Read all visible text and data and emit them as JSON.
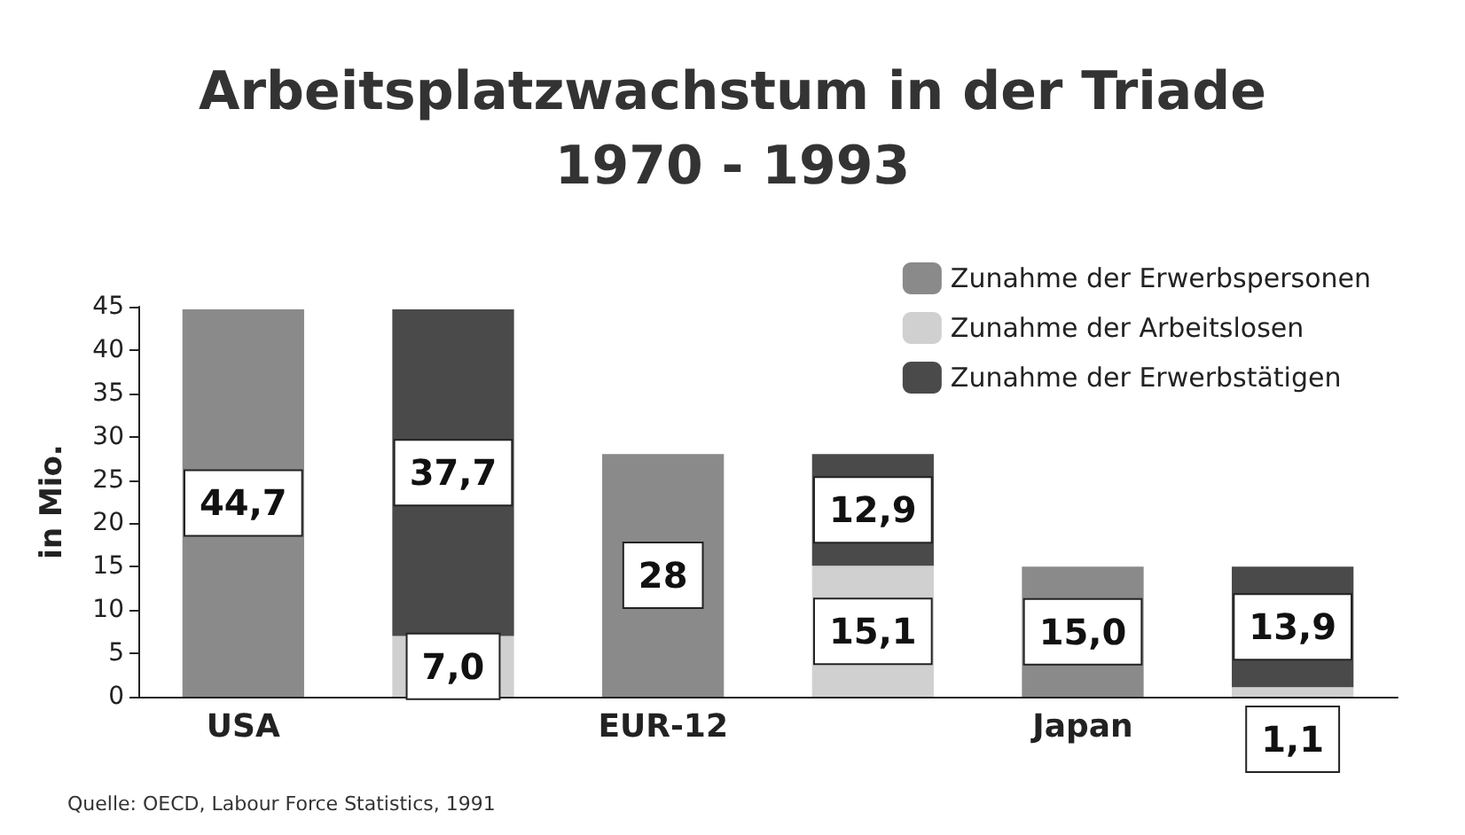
{
  "chart_data": {
    "type": "bar",
    "title": "Arbeitsplatzwachstum in der Triade\n1970 - 1993",
    "ylabel": "in Mio.",
    "categories": [
      "USA",
      null,
      "EUR-12",
      null,
      "Japan",
      null
    ],
    "stacked": true,
    "series": [
      {
        "name": "Zunahme der Erwerbspersonen",
        "color": "#8a8a8a",
        "values": [
          44.7,
          null,
          28,
          null,
          15.0,
          null
        ],
        "value_labels": [
          "44,7",
          null,
          "28",
          null,
          "15,0",
          null
        ]
      },
      {
        "name": "Zunahme der Arbeitslosen",
        "color": "#d0d0d0",
        "values": [
          null,
          7.0,
          null,
          15.1,
          null,
          1.1
        ],
        "value_labels": [
          null,
          "7,0",
          null,
          "15,1",
          null,
          "1,1"
        ]
      },
      {
        "name": "Zunahme der Erwerbstätigen",
        "color": "#4a4a4a",
        "values": [
          null,
          37.7,
          null,
          12.9,
          null,
          13.9
        ],
        "value_labels": [
          null,
          "37,7",
          null,
          "12,9",
          null,
          "13,9"
        ]
      }
    ],
    "ylim": [
      0,
      45
    ],
    "yticks": [
      0,
      5,
      10,
      15,
      20,
      25,
      30,
      35,
      40,
      45
    ],
    "grid": false,
    "legend": "top right",
    "annotations": [
      "Quelle: OECD, Labour Force Statistics, 1991"
    ]
  }
}
